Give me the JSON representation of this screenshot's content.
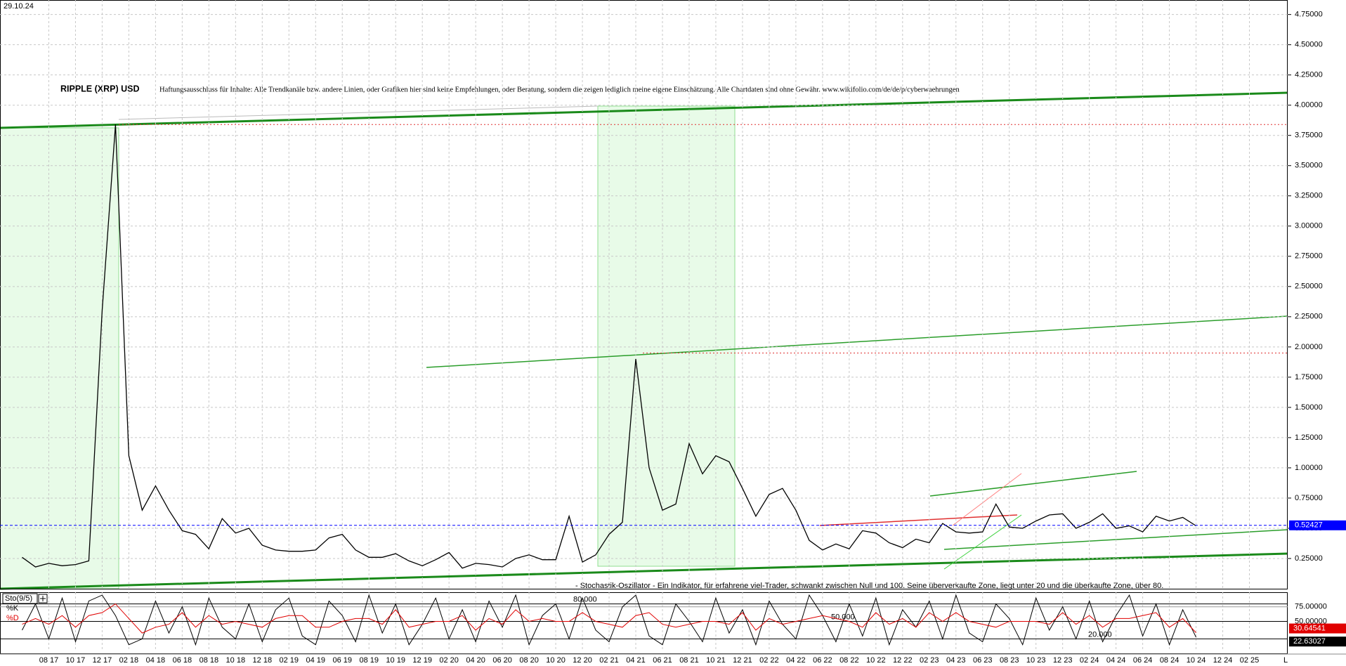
{
  "chart_data": [
    {
      "type": "line",
      "title": "RIPPLE (XRP) USD",
      "date": "29.10.24",
      "annotation": "Haftungsausschluss für Inhalte: Alle Trendkanäle bzw. andere Linien, oder Grafiken hier sind keine Empfehlungen, oder Beratung, sondern die zeigen lediglich meine eigene Einschätzung. Alle Chartdaten sind ohne Gewähr. www.wikifolio.com/de/de/p/cyberwaehrungen",
      "categories": [
        null,
        null,
        "08 17",
        null,
        "10 17",
        null,
        "12 17",
        null,
        "02 18",
        null,
        "04 18",
        null,
        "06 18",
        null,
        "08 18",
        null,
        "10 18",
        null,
        "12 18",
        null,
        "02 19",
        null,
        "04 19",
        null,
        "06 19",
        null,
        "08 19",
        null,
        "10 19",
        null,
        "12 19",
        null,
        "02 20",
        null,
        "04 20",
        null,
        "06 20",
        null,
        "08 20",
        null,
        "10 20",
        null,
        "12 20",
        null,
        "02 21",
        null,
        "04 21",
        null,
        "06 21",
        null,
        "08 21",
        null,
        "10 21",
        null,
        "12 21",
        null,
        "02 22",
        null,
        "04 22",
        null,
        "06 22",
        null,
        "08 22",
        null,
        "10 22",
        null,
        "12 22",
        null,
        "02 23",
        null,
        "04 23",
        null,
        "06 23",
        null,
        "08 23",
        null,
        "10 23",
        null,
        "12 23",
        null,
        "02 24",
        null,
        "04 24",
        null,
        "06 24",
        null,
        "08 24",
        null,
        "10 24",
        null,
        "12 24",
        null,
        "02 25",
        null,
        null
      ],
      "values": [
        0.26,
        0.18,
        0.21,
        0.19,
        0.2,
        0.23,
        2.3,
        3.84,
        1.1,
        0.65,
        0.85,
        0.65,
        0.48,
        0.45,
        0.33,
        0.58,
        0.46,
        0.5,
        0.36,
        0.32,
        0.31,
        0.31,
        0.32,
        0.42,
        0.45,
        0.32,
        0.26,
        0.26,
        0.29,
        0.23,
        0.19,
        0.24,
        0.3,
        0.17,
        0.21,
        0.2,
        0.18,
        0.25,
        0.28,
        0.24,
        0.24,
        0.6,
        0.22,
        0.28,
        0.45,
        0.55,
        1.9,
        1.0,
        0.65,
        0.7,
        1.2,
        0.95,
        1.1,
        1.05,
        0.83,
        0.6,
        0.78,
        0.83,
        0.65,
        0.4,
        0.32,
        0.37,
        0.33,
        0.48,
        0.46,
        0.38,
        0.34,
        0.41,
        0.38,
        0.54,
        0.47,
        0.46,
        0.47,
        0.7,
        0.51,
        0.5,
        0.56,
        0.61,
        0.62,
        0.5,
        0.55,
        0.62,
        0.5,
        0.52,
        0.47,
        0.6,
        0.56,
        0.59,
        0.52,
        null,
        null,
        null,
        null,
        null,
        null
      ],
      "color": "#000000",
      "ylim": [
        0,
        4.87
      ],
      "yticks": [
        {
          "value": 0.25,
          "label": "0.25000"
        },
        {
          "value": 0.5,
          "label": "0.50000"
        },
        {
          "value": 0.75,
          "label": "0.75000"
        },
        {
          "value": 1,
          "label": "1.00000"
        },
        {
          "value": 1.25,
          "label": "1.25000"
        },
        {
          "value": 1.5,
          "label": "1.50000"
        },
        {
          "value": 1.75,
          "label": "1.75000"
        },
        {
          "value": 2,
          "label": "2.00000"
        },
        {
          "value": 2.25,
          "label": "2.25000"
        },
        {
          "value": 2.5,
          "label": "2.50000"
        },
        {
          "value": 2.75,
          "label": "2.75000"
        },
        {
          "value": 3,
          "label": "3.00000"
        },
        {
          "value": 3.25,
          "label": "3.25000"
        },
        {
          "value": 3.5,
          "label": "3.50000"
        },
        {
          "value": 3.75,
          "label": "3.75000"
        },
        {
          "value": 4,
          "label": "4.00000"
        },
        {
          "value": 4.25,
          "label": "4.25000"
        },
        {
          "value": 4.5,
          "label": "4.50000"
        },
        {
          "value": 4.75,
          "label": "4.75000"
        }
      ],
      "grid": true,
      "current": 0.52427,
      "current_color": "#0000ff",
      "levels": [
        3.84,
        1.95
      ],
      "level_color": "#e03030"
    },
    {
      "type": "line",
      "title": "Sto(9/5)",
      "annotation": "- Stochastik-Oszillator - Ein Indikator, für erfahrene viel-Trader, schwankt zwischen Null und 100. Seine überverkaufte Zone, liegt unter 20 und die überkaufte Zone, über 80.",
      "series": [
        {
          "name": "%K",
          "color": "#000000",
          "values": [
            35,
            80,
            20,
            90,
            15,
            85,
            95,
            60,
            10,
            20,
            85,
            30,
            75,
            10,
            90,
            40,
            20,
            80,
            15,
            70,
            90,
            25,
            10,
            85,
            60,
            15,
            95,
            30,
            80,
            10,
            45,
            90,
            20,
            70,
            15,
            85,
            40,
            95,
            10,
            60,
            80,
            20,
            90,
            35,
            15,
            75,
            95,
            25,
            10,
            80,
            50,
            15,
            90,
            30,
            70,
            10,
            85,
            45,
            20,
            95,
            60,
            15,
            80,
            25,
            90,
            10,
            70,
            40,
            85,
            20,
            95,
            30,
            15,
            80,
            55,
            10,
            90,
            35,
            75,
            20,
            85,
            15,
            60,
            95,
            25,
            80,
            10,
            70,
            22.63027,
            null,
            null,
            null,
            null,
            null,
            null
          ]
        },
        {
          "name": "%D",
          "color": "#e00000",
          "values": [
            45,
            55,
            45,
            60,
            40,
            60,
            65,
            80,
            55,
            30,
            40,
            45,
            65,
            40,
            60,
            45,
            50,
            45,
            40,
            55,
            60,
            60,
            40,
            40,
            50,
            55,
            55,
            45,
            70,
            40,
            45,
            50,
            50,
            60,
            35,
            55,
            45,
            70,
            50,
            55,
            50,
            50,
            65,
            50,
            45,
            40,
            60,
            65,
            45,
            40,
            45,
            50,
            50,
            45,
            65,
            35,
            55,
            45,
            50,
            55,
            60,
            55,
            50,
            40,
            65,
            45,
            55,
            40,
            65,
            50,
            65,
            50,
            45,
            40,
            50,
            50,
            50,
            45,
            65,
            45,
            60,
            40,
            55,
            55,
            60,
            65,
            40,
            55,
            30.64541,
            null,
            null,
            null,
            null,
            null,
            null
          ]
        }
      ],
      "ylim": [
        0,
        100
      ],
      "yticks": [
        {
          "value": 75,
          "label": "75.00000"
        },
        {
          "value": 50,
          "label": "50.00000"
        }
      ],
      "grid": true,
      "levels": [
        {
          "value": 80,
          "label": "80.000"
        },
        {
          "value": 50,
          "label": "50.000"
        },
        {
          "value": 20,
          "label": "20.000"
        }
      ],
      "corner_label": "L"
    }
  ]
}
